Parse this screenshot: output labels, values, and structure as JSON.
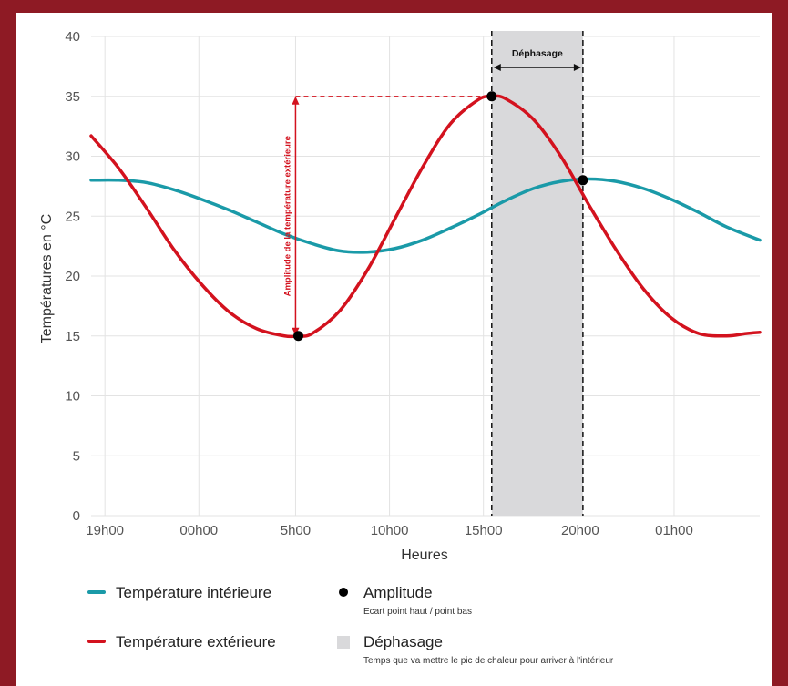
{
  "chart_data": {
    "type": "line",
    "title": "",
    "xlabel": "Heures",
    "ylabel": "Températures en °C",
    "ylim": [
      0,
      40
    ],
    "yticks": [
      "0",
      "5",
      "10",
      "15",
      "20",
      "25",
      "30",
      "35",
      "40"
    ],
    "xlim": [
      14.5,
      38.7
    ],
    "xticks": [
      {
        "label": "19h00",
        "x": 15.0
      },
      {
        "label": "00h00",
        "x": 18.4
      },
      {
        "label": "5h00",
        "x": 21.9
      },
      {
        "label": "10h00",
        "x": 25.3
      },
      {
        "label": "15h00",
        "x": 28.7
      },
      {
        "label": "20h00",
        "x": 32.2
      },
      {
        "label": "01h00",
        "x": 35.6
      }
    ],
    "grid": true,
    "series": [
      {
        "name": "Température intérieure",
        "color": "#1a9aa8",
        "x": [
          14.5,
          15.5,
          16.5,
          17.5,
          18.5,
          19.5,
          20.5,
          21.5,
          22.5,
          23.5,
          24.5,
          25.5,
          26.5,
          27.5,
          28.5,
          29.5,
          30.5,
          31.5,
          32.5,
          33.5,
          34.5,
          35.5,
          36.5,
          37.5,
          38.7
        ],
        "y": [
          28,
          28,
          27.8,
          27.2,
          26.4,
          25.5,
          24.5,
          23.5,
          22.7,
          22.1,
          22,
          22.3,
          23,
          24,
          25.1,
          26.3,
          27.3,
          27.9,
          28.1,
          27.9,
          27.3,
          26.4,
          25.3,
          24.1,
          23
        ]
      },
      {
        "name": "Température extérieure",
        "color": "#d3121e",
        "x": [
          14.5,
          15.5,
          16.5,
          17.5,
          18.5,
          19.5,
          20.5,
          21.5,
          22.0,
          22.5,
          23.5,
          24.5,
          25.5,
          26.5,
          27.5,
          28.5,
          29.0,
          29.5,
          30.5,
          31.5,
          32.5,
          33.5,
          34.5,
          35.5,
          36.5,
          37.5,
          38.2,
          38.7
        ],
        "y": [
          31.7,
          29,
          25.7,
          22.2,
          19.3,
          17.0,
          15.6,
          15.0,
          15.0,
          15.2,
          17.1,
          20.5,
          24.8,
          29.1,
          32.7,
          34.7,
          35,
          34.8,
          33.1,
          30,
          26,
          22.2,
          18.9,
          16.5,
          15.2,
          15.0,
          15.2,
          15.3
        ]
      }
    ],
    "phase_shift": {
      "label": "Déphasage",
      "x_start": 29.0,
      "x_end": 32.3,
      "color": "#d9d9db"
    },
    "amplitude": {
      "label": "Amplitude de la température extérieure",
      "x": 21.9,
      "y_low": 15,
      "y_high": 35
    },
    "markers": [
      {
        "x": 22.0,
        "y": 15
      },
      {
        "x": 29.0,
        "y": 35
      },
      {
        "x": 32.3,
        "y": 28
      }
    ]
  },
  "legend": {
    "interieure": {
      "label": "Température intérieure",
      "color": "#1a9aa8"
    },
    "exterieure": {
      "label": "Température extérieure",
      "color": "#d3121e"
    },
    "amplitude": {
      "label": "Amplitude",
      "sub": "Ecart point haut / point bas"
    },
    "dephasage": {
      "label": "Déphasage",
      "sub": "Temps que va mettre le pic de chaleur pour arriver à l'intérieur",
      "color": "#d9d9db"
    }
  }
}
